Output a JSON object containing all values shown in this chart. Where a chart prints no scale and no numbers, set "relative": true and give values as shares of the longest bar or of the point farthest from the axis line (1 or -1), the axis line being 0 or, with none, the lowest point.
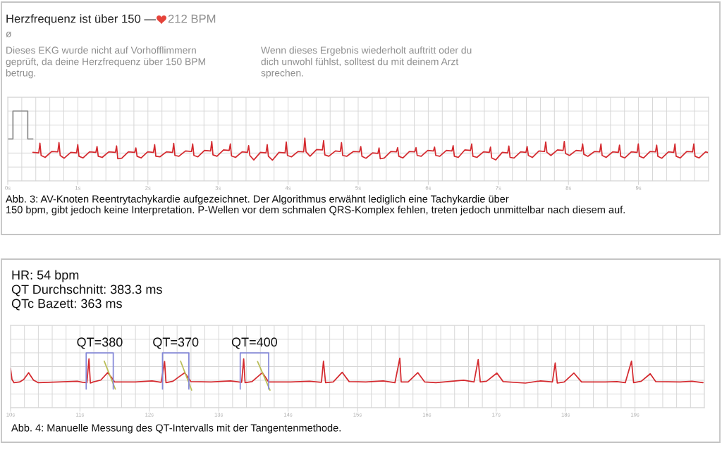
{
  "chart_data": [
    {
      "type": "line",
      "title": "Herzfrequenz ist über 150 —",
      "subtitle": "212 BPM",
      "annotations": [
        "ø",
        "Dieses EKG wurde nicht auf Vorhofflimmern\ngeprüft, da deine Herzfrequenz über 150 BPM\nbetrug.",
        "Wenn dieses Ergebnis wiederholt auftritt oder du\ndich unwohl fühlst, solltest du mit deinem Arzt\nsprechen.",
        "Abb. 3: AV-Knoten Reentrytachykardie aufgezeichnet. Der Algorithmus erwähnt lediglich eine Tachykardie über\n150 bpm, gibt jedoch keine Interpretation. P-Wellen vor dem schmalen QRS-Komplex fehlen, treten jedoch unmittelbar nach diesem auf."
      ],
      "relative": true,
      "xlim": [
        0,
        10
      ],
      "xticks": [
        {
          "value": 0,
          "label": "0s"
        },
        {
          "value": 1,
          "label": "1s"
        },
        {
          "value": 2,
          "label": "2s"
        },
        {
          "value": 3,
          "label": "3s"
        },
        {
          "value": 4,
          "label": "4s"
        },
        {
          "value": 5,
          "label": "5s"
        },
        {
          "value": 6,
          "label": "6s"
        },
        {
          "value": 7,
          "label": "7s"
        },
        {
          "value": 8,
          "label": "8s"
        },
        {
          "value": 9,
          "label": "9s"
        }
      ],
      "grid": true,
      "series": [
        {
          "color": "#8c8c8c",
          "x": [
            0,
            0.074,
            0.074,
            0.285,
            0.285,
            0.359
          ],
          "values": [
            0,
            0,
            1.0,
            1.0,
            0,
            0
          ]
        },
        {
          "color": "#d42a2f",
          "x": [
            0.359,
            0.442,
            0.459,
            0.476,
            0.533,
            0.627,
            0.714,
            0.731,
            0.748,
            0.805,
            0.899,
            0.982,
            0.999,
            1.016,
            1.073,
            1.167,
            1.257,
            1.274,
            1.291,
            1.348,
            1.442,
            1.536,
            1.553,
            1.57,
            1.627,
            1.721,
            1.811,
            1.828,
            1.845,
            1.902,
            1.996,
            2.079,
            2.096,
            2.113,
            2.17,
            2.264,
            2.351,
            2.368,
            2.385,
            2.442,
            2.536,
            2.622,
            2.639,
            2.656,
            2.713,
            2.807,
            2.894,
            2.911,
            2.928,
            2.985,
            3.079,
            3.159,
            3.176,
            3.193,
            3.25,
            3.344,
            3.42,
            3.437,
            3.454,
            3.511,
            3.605,
            3.685,
            3.702,
            3.719,
            3.776,
            3.87,
            3.957,
            3.974,
            3.991,
            4.048,
            4.142,
            4.222,
            4.239,
            4.256,
            4.313,
            4.407,
            4.49,
            4.507,
            4.524,
            4.581,
            4.675,
            4.745,
            4.762,
            4.779,
            4.836,
            4.93,
            5.02,
            5.037,
            5.054,
            5.111,
            5.205,
            5.281,
            5.298,
            5.315,
            5.372,
            5.466,
            5.546,
            5.563,
            5.58,
            5.637,
            5.731,
            5.808,
            5.825,
            5.842,
            5.899,
            5.993,
            6.073,
            6.09,
            6.107,
            6.164,
            6.258,
            6.338,
            6.355,
            6.372,
            6.429,
            6.523,
            6.603,
            6.62,
            6.637,
            6.694,
            6.788,
            6.871,
            6.888,
            6.905,
            6.962,
            7.056,
            7.133,
            7.15,
            7.167,
            7.224,
            7.318,
            7.394,
            7.411,
            7.428,
            7.485,
            7.579,
            7.659,
            7.676,
            7.693,
            7.75,
            7.844,
            7.924,
            7.941,
            7.958,
            8.015,
            8.109,
            8.186,
            8.203,
            8.22,
            8.277,
            8.371,
            8.447,
            8.464,
            8.481,
            8.538,
            8.632,
            8.712,
            8.729,
            8.746,
            8.803,
            8.897,
            8.98,
            8.997,
            9.014,
            9.071,
            9.165,
            9.242,
            9.259,
            9.276,
            9.333,
            9.427,
            9.503,
            9.52,
            9.537,
            9.594,
            9.688,
            9.772,
            9.789,
            9.806,
            9.863,
            9.957,
            9.983
          ],
          "values": [
            -0.48,
            -0.5,
            -0.15,
            -0.59,
            -0.66,
            -0.45,
            -0.46,
            -0.13,
            -0.59,
            -0.69,
            -0.48,
            -0.5,
            -0.2,
            -0.62,
            -0.68,
            -0.46,
            -0.48,
            -0.27,
            -0.62,
            -0.66,
            -0.46,
            -0.48,
            -0.25,
            -0.71,
            -0.69,
            -0.46,
            -0.48,
            -0.32,
            -0.62,
            -0.68,
            -0.46,
            -0.48,
            -0.2,
            -0.62,
            -0.64,
            -0.46,
            -0.48,
            -0.16,
            -0.59,
            -0.62,
            -0.43,
            -0.45,
            -0.18,
            -0.59,
            -0.64,
            -0.41,
            -0.43,
            -0.09,
            -0.57,
            -0.62,
            -0.39,
            -0.41,
            -0.18,
            -0.61,
            -0.66,
            -0.46,
            -0.48,
            -0.24,
            -0.59,
            -0.75,
            -0.48,
            -0.5,
            -0.2,
            -0.62,
            -0.76,
            -0.48,
            -0.5,
            -0.11,
            -0.59,
            -0.64,
            -0.45,
            -0.46,
            0.03,
            -0.46,
            -0.62,
            -0.38,
            -0.39,
            -0.06,
            -0.57,
            -0.62,
            -0.43,
            -0.45,
            -0.13,
            -0.59,
            -0.62,
            -0.45,
            -0.46,
            -0.27,
            -0.62,
            -0.69,
            -0.5,
            -0.52,
            -0.32,
            -0.71,
            -0.68,
            -0.45,
            -0.46,
            -0.31,
            -0.62,
            -0.68,
            -0.45,
            -0.46,
            -0.31,
            -0.59,
            -0.62,
            -0.41,
            -0.43,
            -0.29,
            -0.59,
            -0.62,
            -0.41,
            -0.43,
            -0.24,
            -0.62,
            -0.66,
            -0.39,
            -0.41,
            -0.18,
            -0.62,
            -0.66,
            -0.46,
            -0.48,
            -0.29,
            -0.68,
            -0.75,
            -0.48,
            -0.5,
            -0.25,
            -0.66,
            -0.68,
            -0.46,
            -0.48,
            -0.27,
            -0.59,
            -0.66,
            -0.43,
            -0.45,
            -0.11,
            -0.48,
            -0.59,
            -0.39,
            -0.41,
            -0.09,
            -0.52,
            -0.59,
            -0.41,
            -0.43,
            -0.18,
            -0.55,
            -0.62,
            -0.45,
            -0.46,
            -0.18,
            -0.59,
            -0.66,
            -0.46,
            -0.48,
            -0.22,
            -0.62,
            -0.68,
            -0.46,
            -0.48,
            -0.18,
            -0.62,
            -0.68,
            -0.45,
            -0.46,
            -0.22,
            -0.62,
            -0.69,
            -0.46,
            -0.48,
            -0.18,
            -0.62,
            -0.68,
            -0.45,
            -0.46,
            -0.18,
            -0.62,
            -0.68,
            -0.46,
            -0.48
          ]
        }
      ]
    },
    {
      "type": "line",
      "title": "HR: 54 bpm",
      "subtitle": "QT Durchschnitt: 383.3 ms\nQTc Bazett: 363 ms",
      "annotations": [
        "Abb. 4: Manuelle Messung des QT-Intervalls mit der Tangentenmethode."
      ],
      "relative": true,
      "xlim": [
        10,
        20
      ],
      "xticks": [
        {
          "value": 10,
          "label": "10s"
        },
        {
          "value": 11,
          "label": "11s"
        },
        {
          "value": 12,
          "label": "12s"
        },
        {
          "value": 13,
          "label": "13s"
        },
        {
          "value": 14,
          "label": "14s"
        },
        {
          "value": 15,
          "label": "15s"
        },
        {
          "value": 16,
          "label": "16s"
        },
        {
          "value": 17,
          "label": "17s"
        },
        {
          "value": 18,
          "label": "18s"
        },
        {
          "value": 19,
          "label": "19s"
        }
      ],
      "grid": true,
      "series": [
        {
          "color": "#d42a2f",
          "x": [
            10.0,
            10.02,
            10.05,
            10.13,
            10.19,
            10.26,
            10.33,
            10.4,
            10.69,
            10.96,
            11.04,
            11.1,
            11.13,
            11.15,
            11.19,
            11.3,
            11.4,
            11.46,
            11.5,
            11.8,
            12.04,
            12.17,
            12.22,
            12.24,
            12.34,
            12.51,
            12.6,
            12.89,
            13.17,
            13.33,
            13.36,
            13.38,
            13.48,
            13.63,
            13.72,
            14.04,
            14.31,
            14.48,
            14.51,
            14.54,
            14.65,
            14.78,
            14.88,
            15.12,
            15.37,
            15.54,
            15.61,
            15.63,
            15.73,
            15.87,
            15.97,
            16.13,
            16.53,
            16.68,
            16.74,
            16.77,
            16.86,
            17.01,
            17.1,
            17.42,
            17.64,
            17.81,
            17.85,
            17.88,
            17.98,
            18.12,
            18.23,
            18.57,
            18.74,
            18.86,
            18.95,
            18.98,
            19.09,
            19.22,
            19.3,
            19.65,
            19.82,
            19.98
          ],
          "values": [
            0.58,
            0.29,
            0.2,
            0.22,
            0.29,
            0.47,
            0.27,
            0.2,
            0.22,
            0.24,
            0.21,
            0.2,
            0.84,
            0.19,
            0.22,
            0.27,
            0.47,
            0.33,
            0.22,
            0.22,
            0.25,
            0.21,
            0.77,
            0.2,
            0.24,
            0.47,
            0.23,
            0.22,
            0.25,
            0.21,
            0.84,
            0.2,
            0.23,
            0.47,
            0.22,
            0.22,
            0.24,
            0.21,
            0.78,
            0.2,
            0.22,
            0.48,
            0.23,
            0.22,
            0.25,
            0.2,
            0.86,
            0.22,
            0.22,
            0.47,
            0.22,
            0.2,
            0.27,
            0.22,
            0.82,
            0.22,
            0.24,
            0.46,
            0.23,
            0.19,
            0.25,
            0.22,
            0.73,
            0.19,
            0.22,
            0.46,
            0.22,
            0.22,
            0.23,
            0.2,
            0.78,
            0.2,
            0.24,
            0.44,
            0.23,
            0.22,
            0.24,
            0.2
          ]
        },
        {
          "color": "#b9bd55",
          "x": [
            11.35,
            11.51
          ],
          "values": [
            0.78,
            0.03
          ]
        },
        {
          "color": "#b9bd55",
          "x": [
            12.45,
            12.61
          ],
          "values": [
            0.78,
            0.0
          ]
        },
        {
          "color": "#b9bd55",
          "x": [
            13.56,
            13.74
          ],
          "values": [
            0.77,
            0.0
          ]
        },
        {
          "name": "QT=380",
          "color": "#8488d8",
          "x": [
            11.09,
            11.09,
            11.48,
            11.48
          ],
          "values": [
            0.03,
            1.0,
            1.0,
            0.03
          ]
        },
        {
          "name": "QT=370",
          "color": "#8488d8",
          "x": [
            12.19,
            12.19,
            12.57,
            12.57
          ],
          "values": [
            0.03,
            1.0,
            1.0,
            0.03
          ]
        },
        {
          "name": "QT=400",
          "color": "#8488d8",
          "x": [
            13.31,
            13.31,
            13.72,
            13.72
          ],
          "values": [
            0.03,
            1.0,
            1.0,
            0.03
          ]
        }
      ]
    }
  ]
}
